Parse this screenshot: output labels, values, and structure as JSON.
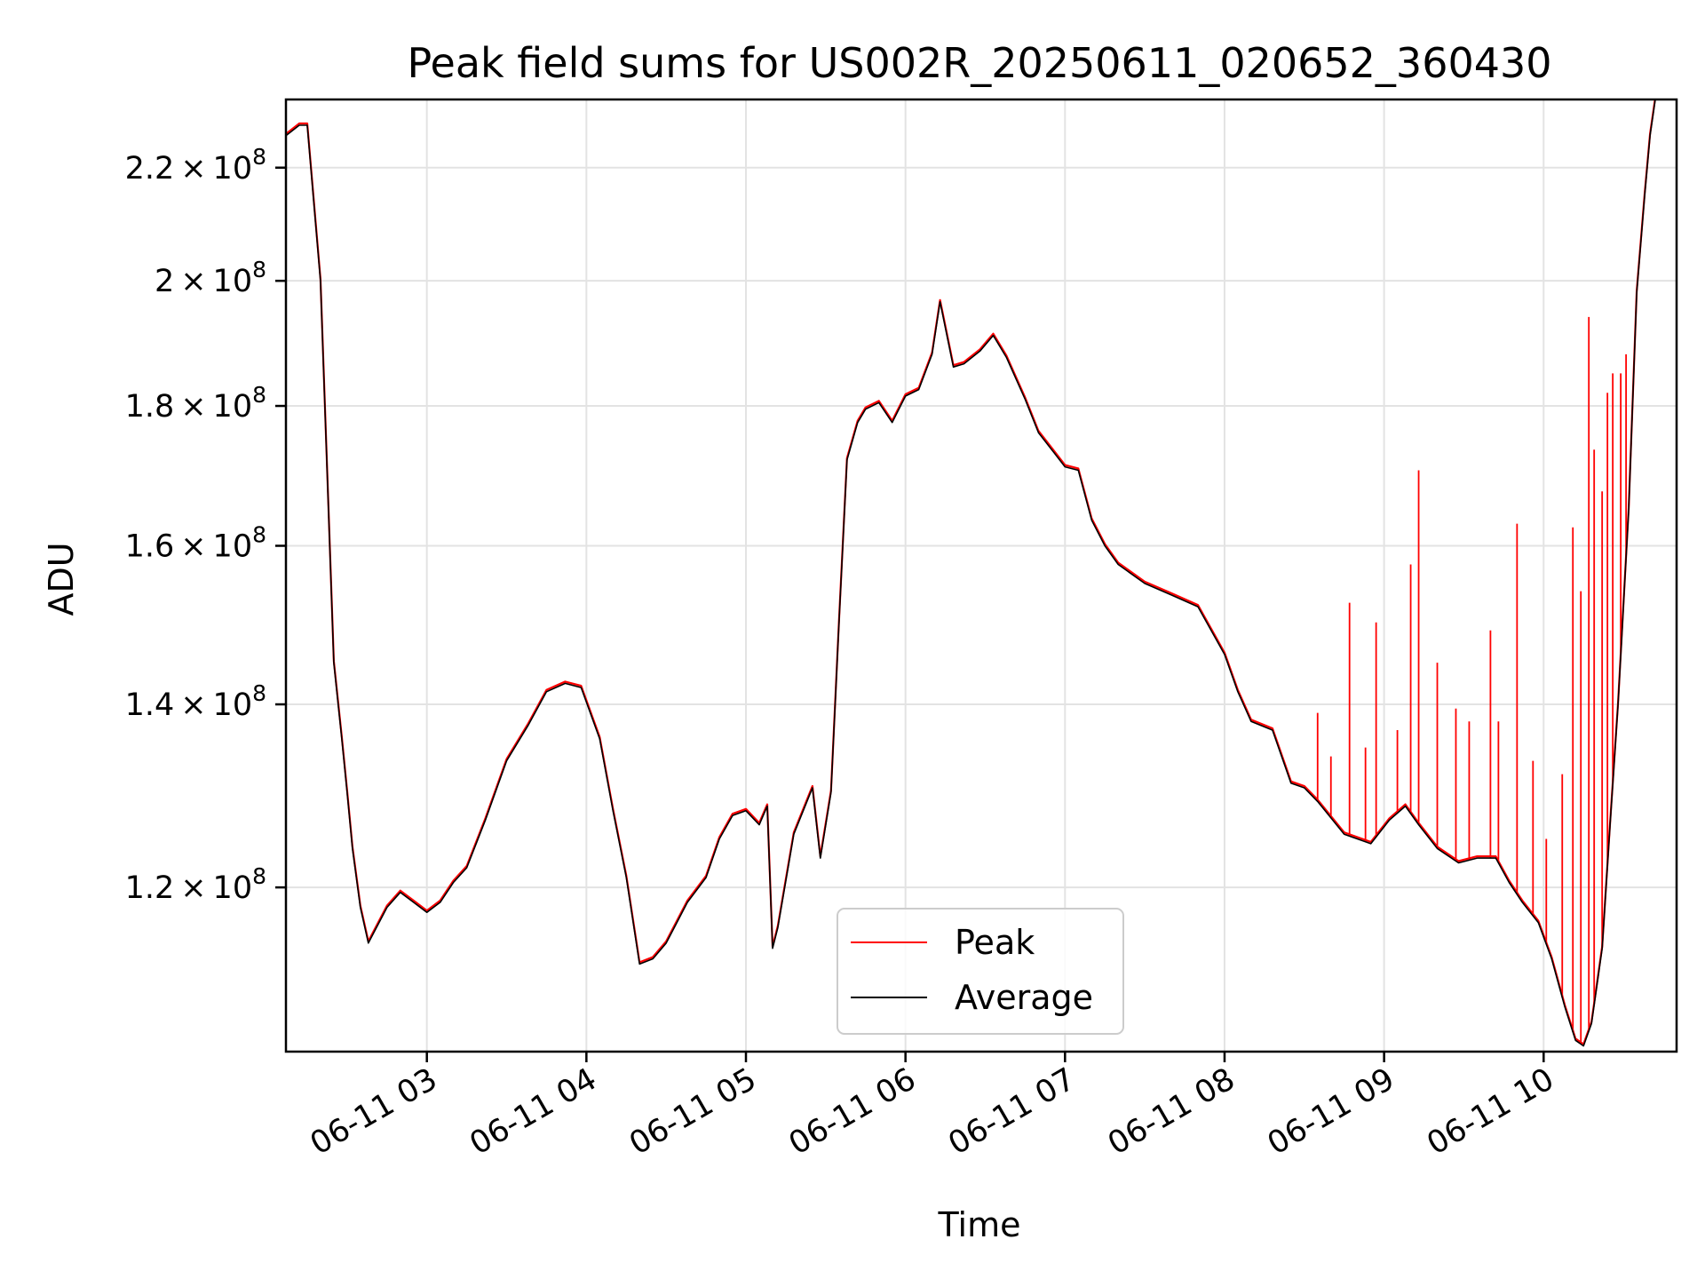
{
  "chart_data": {
    "type": "line",
    "title": "Peak field sums for US002R_20250611_020652_360430",
    "xlabel": "Time",
    "ylabel": "ADU",
    "y_scale": "log",
    "xlim": [
      "2025-06-11 02:07",
      "2025-06-11 10:50"
    ],
    "ylim": [
      104500000,
      233000000
    ],
    "x_ticks": [
      "06-11 03",
      "06-11 04",
      "06-11 05",
      "06-11 06",
      "06-11 07",
      "06-11 08",
      "06-11 09",
      "06-11 10"
    ],
    "y_ticks": [
      {
        "value": 120000000,
        "mantissa": "1.2",
        "base": "10",
        "exponent": "8"
      },
      {
        "value": 140000000,
        "mantissa": "1.4",
        "base": "10",
        "exponent": "8"
      },
      {
        "value": 160000000,
        "mantissa": "1.6",
        "base": "10",
        "exponent": "8"
      },
      {
        "value": 180000000,
        "mantissa": "1.8",
        "base": "10",
        "exponent": "8"
      },
      {
        "value": 200000000,
        "mantissa": "2",
        "base": "10",
        "exponent": "8"
      },
      {
        "value": 220000000,
        "mantissa": "2.2",
        "base": "10",
        "exponent": "8"
      }
    ],
    "grid": true,
    "legend_position": "lower-center",
    "colors": {
      "peak": "#ff0000",
      "average": "#000000"
    },
    "series": [
      {
        "name": "Average",
        "color": "#000000",
        "x": [
          "2025-06-11 02:07",
          "2025-06-11 02:12",
          "2025-06-11 02:15",
          "2025-06-11 02:20",
          "2025-06-11 02:23",
          "2025-06-11 02:25",
          "2025-06-11 02:28",
          "2025-06-11 02:30",
          "2025-06-11 02:32",
          "2025-06-11 02:35",
          "2025-06-11 02:38",
          "2025-06-11 02:45",
          "2025-06-11 02:50",
          "2025-06-11 02:55",
          "2025-06-11 03:00",
          "2025-06-11 03:05",
          "2025-06-11 03:10",
          "2025-06-11 03:15",
          "2025-06-11 03:22",
          "2025-06-11 03:30",
          "2025-06-11 03:38",
          "2025-06-11 03:45",
          "2025-06-11 03:52",
          "2025-06-11 03:58",
          "2025-06-11 04:05",
          "2025-06-11 04:10",
          "2025-06-11 04:15",
          "2025-06-11 04:20",
          "2025-06-11 04:25",
          "2025-06-11 04:30",
          "2025-06-11 04:38",
          "2025-06-11 04:45",
          "2025-06-11 04:50",
          "2025-06-11 04:55",
          "2025-06-11 05:00",
          "2025-06-11 05:05",
          "2025-06-11 05:08",
          "2025-06-11 05:10",
          "2025-06-11 05:12",
          "2025-06-11 05:18",
          "2025-06-11 05:25",
          "2025-06-11 05:28",
          "2025-06-11 05:32",
          "2025-06-11 05:35",
          "2025-06-11 05:38",
          "2025-06-11 05:42",
          "2025-06-11 05:45",
          "2025-06-11 05:50",
          "2025-06-11 05:55",
          "2025-06-11 06:00",
          "2025-06-11 06:05",
          "2025-06-11 06:10",
          "2025-06-11 06:13",
          "2025-06-11 06:18",
          "2025-06-11 06:22",
          "2025-06-11 06:28",
          "2025-06-11 06:33",
          "2025-06-11 06:38",
          "2025-06-11 06:45",
          "2025-06-11 06:50",
          "2025-06-11 06:55",
          "2025-06-11 07:00",
          "2025-06-11 07:05",
          "2025-06-11 07:10",
          "2025-06-11 07:15",
          "2025-06-11 07:20",
          "2025-06-11 07:30",
          "2025-06-11 07:40",
          "2025-06-11 07:50",
          "2025-06-11 08:00",
          "2025-06-11 08:05",
          "2025-06-11 08:10",
          "2025-06-11 08:18",
          "2025-06-11 08:25",
          "2025-06-11 08:30",
          "2025-06-11 08:35",
          "2025-06-11 08:45",
          "2025-06-11 08:55",
          "2025-06-11 09:02",
          "2025-06-11 09:08",
          "2025-06-11 09:13",
          "2025-06-11 09:20",
          "2025-06-11 09:28",
          "2025-06-11 09:35",
          "2025-06-11 09:42",
          "2025-06-11 09:47",
          "2025-06-11 09:52",
          "2025-06-11 09:58",
          "2025-06-11 10:03",
          "2025-06-11 10:08",
          "2025-06-11 10:12",
          "2025-06-11 10:15",
          "2025-06-11 10:18",
          "2025-06-11 10:22",
          "2025-06-11 10:25",
          "2025-06-11 10:28",
          "2025-06-11 10:32",
          "2025-06-11 10:35",
          "2025-06-11 10:38",
          "2025-06-11 10:40",
          "2025-06-11 10:42",
          "2025-06-11 10:45",
          "2025-06-11 10:48",
          "2025-06-11 10:50"
        ],
        "y": [
          226000000,
          228000000,
          228000000,
          200000000,
          165000000,
          145000000,
          136000000,
          130000000,
          124000000,
          118000000,
          114500000,
          118000000,
          119500000,
          118500000,
          117500000,
          118500000,
          120500000,
          122000000,
          127000000,
          133500000,
          137500000,
          141500000,
          142500000,
          142000000,
          136000000,
          128000000,
          121000000,
          112500000,
          113000000,
          114500000,
          118500000,
          121000000,
          125000000,
          127500000,
          128000000,
          126500000,
          128500000,
          114000000,
          116000000,
          125500000,
          130500000,
          123000000,
          130000000,
          150000000,
          172000000,
          177500000,
          179500000,
          180500000,
          177500000,
          181500000,
          182500000,
          188000000,
          196500000,
          186000000,
          186500000,
          188500000,
          191000000,
          187500000,
          181000000,
          176000000,
          173500000,
          171000000,
          170500000,
          163500000,
          160000000,
          157500000,
          155000000,
          153500000,
          152000000,
          146000000,
          141500000,
          138000000,
          137000000,
          131000000,
          130500000,
          129000000,
          125500000,
          124500000,
          127000000,
          128500000,
          126500000,
          124000000,
          122500000,
          123000000,
          123000000,
          120500000,
          118500000,
          116500000,
          113000000,
          108500000,
          105500000,
          105000000,
          107000000,
          114000000,
          126500000,
          140000000,
          165000000,
          198000000,
          215000000,
          226000000,
          233000000,
          233000000,
          233000000,
          233000000
        ]
      },
      {
        "name": "Peak",
        "color": "#ff0000",
        "x": [
          "2025-06-11 08:35",
          "2025-06-11 08:40",
          "2025-06-11 08:47",
          "2025-06-11 08:53",
          "2025-06-11 08:57",
          "2025-06-11 09:05",
          "2025-06-11 09:10",
          "2025-06-11 09:13",
          "2025-06-11 09:20",
          "2025-06-11 09:27",
          "2025-06-11 09:32",
          "2025-06-11 09:40",
          "2025-06-11 09:43",
          "2025-06-11 09:50",
          "2025-06-11 09:56",
          "2025-06-11 10:01",
          "2025-06-11 10:07",
          "2025-06-11 10:11",
          "2025-06-11 10:14",
          "2025-06-11 10:17",
          "2025-06-11 10:19",
          "2025-06-11 10:22",
          "2025-06-11 10:24",
          "2025-06-11 10:26",
          "2025-06-11 10:29",
          "2025-06-11 10:31"
        ],
        "y": [
          139000000,
          134000000,
          152500000,
          135000000,
          150000000,
          137000000,
          157500000,
          170500000,
          145000000,
          139500000,
          138000000,
          149000000,
          138000000,
          163000000,
          133500000,
          125000000,
          132000000,
          162500000,
          154000000,
          194000000,
          173500000,
          167500000,
          182000000,
          185000000,
          185000000,
          188000000
        ]
      }
    ]
  }
}
